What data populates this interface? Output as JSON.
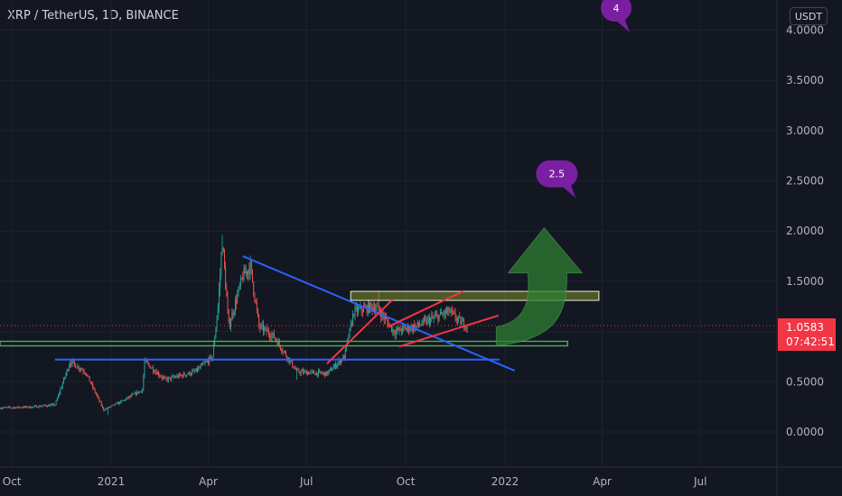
{
  "header": {
    "title": "XRP / TetherUS, 1D, BINANCE"
  },
  "price_scale": {
    "currency": "USDT"
  },
  "last_price": {
    "value": "1.0583",
    "countdown": "07:42:51",
    "color": "#f23645"
  },
  "colors": {
    "background": "#131722",
    "up": "#26a69a",
    "down": "#ef5350",
    "trendline_blue": "#2962ff",
    "trendline_red": "#f23645",
    "support_green": "#4caf50",
    "resistance_box": "#5d6b2a",
    "arrow_green": "#2e7d32",
    "callout_purple": "#7b1fa2"
  },
  "chart_data": {
    "type": "candlestick",
    "title": "XRP / TetherUS, 1D, BINANCE",
    "ylabel": "",
    "xlabel": "",
    "ylim": [
      -0.35,
      4.3
    ],
    "y_ticks": [
      0.0,
      0.5,
      1.0,
      1.5,
      2.0,
      2.5,
      3.0,
      3.5,
      4.0
    ],
    "y_tick_labels": [
      "0.0000",
      "0.5000",
      "1.0000",
      "1.5000",
      "2.0000",
      "2.5000",
      "3.0000",
      "3.5000",
      "4.0000"
    ],
    "x_range": [
      "2020-09-20",
      "2022-09-10"
    ],
    "x_ticks": [
      {
        "date": "2020-10-01",
        "label": "Oct"
      },
      {
        "date": "2021-01-01",
        "label": "2021"
      },
      {
        "date": "2021-04-01",
        "label": "Apr"
      },
      {
        "date": "2021-07-01",
        "label": "Jul"
      },
      {
        "date": "2021-10-01",
        "label": "Oct"
      },
      {
        "date": "2022-01-01",
        "label": "2022"
      },
      {
        "date": "2022-04-01",
        "label": "Apr"
      },
      {
        "date": "2022-07-01",
        "label": "Jul"
      }
    ],
    "price_path": [
      [
        "2020-09-20",
        0.24
      ],
      [
        "2020-10-20",
        0.25
      ],
      [
        "2020-11-10",
        0.27
      ],
      [
        "2020-11-24",
        0.7
      ],
      [
        "2020-12-08",
        0.6
      ],
      [
        "2020-12-25",
        0.22
      ],
      [
        "2021-01-10",
        0.3
      ],
      [
        "2021-01-30",
        0.42
      ],
      [
        "2021-02-01",
        0.7
      ],
      [
        "2021-02-20",
        0.52
      ],
      [
        "2021-03-20",
        0.6
      ],
      [
        "2021-04-05",
        0.75
      ],
      [
        "2021-04-10",
        1.25
      ],
      [
        "2021-04-14",
        1.9
      ],
      [
        "2021-04-20",
        1.05
      ],
      [
        "2021-05-03",
        1.55
      ],
      [
        "2021-05-10",
        1.65
      ],
      [
        "2021-05-18",
        1.05
      ],
      [
        "2021-06-01",
        0.95
      ],
      [
        "2021-06-22",
        0.6
      ],
      [
        "2021-07-20",
        0.58
      ],
      [
        "2021-08-05",
        0.75
      ],
      [
        "2021-08-14",
        1.2
      ],
      [
        "2021-09-01",
        1.25
      ],
      [
        "2021-09-07",
        1.2
      ],
      [
        "2021-09-20",
        1.0
      ],
      [
        "2021-10-10",
        1.05
      ],
      [
        "2021-11-10",
        1.2
      ],
      [
        "2021-11-20",
        1.1
      ],
      [
        "2021-11-27",
        1.06
      ]
    ],
    "price_extremes": [
      [
        "2021-04-14",
        1.96
      ],
      [
        "2021-09-06",
        1.41
      ],
      [
        "2021-06-22",
        0.52
      ],
      [
        "2020-12-29",
        0.17
      ]
    ],
    "drawings": {
      "descending_trendline": {
        "from": [
          "2021-05-03",
          1.75
        ],
        "to": [
          "2022-01-10",
          0.61
        ],
        "color": "#2962ff"
      },
      "horizontal_support_blue": {
        "from": [
          "2020-11-10",
          0.72
        ],
        "to": [
          "2021-12-27",
          0.72
        ],
        "color": "#2962ff"
      },
      "support_green": {
        "from": [
          "2020-09-20",
          0.88
        ],
        "to": [
          "2022-02-28",
          0.88
        ],
        "color": "#4caf50"
      },
      "resistance_box": {
        "from_date": "2021-08-11",
        "to_date": "2022-03-29",
        "low": 1.31,
        "high": 1.4
      },
      "red_lines": [
        {
          "from": [
            "2021-07-20",
            0.68
          ],
          "to": [
            "2021-09-19",
            1.32
          ]
        },
        {
          "from": [
            "2021-09-15",
            1.05
          ],
          "to": [
            "2021-11-23",
            1.4
          ]
        },
        {
          "from": [
            "2021-09-25",
            0.85
          ],
          "to": [
            "2021-12-26",
            1.16
          ]
        }
      ],
      "curved_arrow": {
        "tip_date": "2022-02-08",
        "tip_value": 2.05,
        "color": "#2e7d32"
      },
      "callouts": [
        {
          "text": "2.5",
          "date": "2022-02-18",
          "value": 2.57
        },
        {
          "text": "4",
          "date": "2022-04-14",
          "value": 4.22
        }
      ]
    }
  }
}
